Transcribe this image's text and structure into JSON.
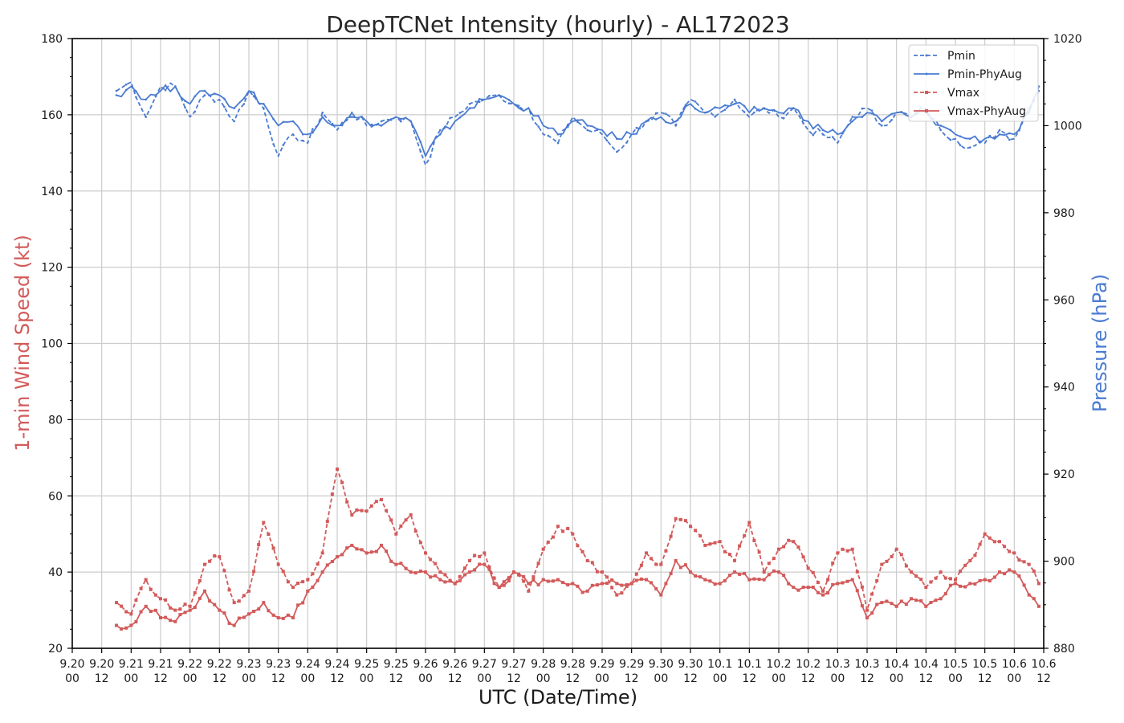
{
  "colors": {
    "pressure": "#4a7bd1",
    "wind": "#d35a5a",
    "grid": "#cccccc",
    "axis": "#000000"
  },
  "chart_data": {
    "type": "line",
    "title": "DeepTCNet Intensity (hourly) - AL172023",
    "xlabel": "UTC (Date/Time)",
    "ylabel_left": "1-min Wind Speed (kt)",
    "ylabel_right": "Pressure (hPa)",
    "x_unit": "hours since 9.20 00 UTC",
    "xlim": [
      0,
      396
    ],
    "ylim_left": [
      20,
      180
    ],
    "ylim_right": [
      880,
      1020
    ],
    "yticks_left": [
      "20",
      "40",
      "60",
      "80",
      "100",
      "120",
      "140",
      "160",
      "180"
    ],
    "yticks_right": [
      "880",
      "900",
      "920",
      "940",
      "960",
      "980",
      "1000",
      "1020"
    ],
    "xticks": [
      {
        "date": "9.20",
        "time": "00"
      },
      {
        "date": "9.20",
        "time": "12"
      },
      {
        "date": "9.21",
        "time": "00"
      },
      {
        "date": "9.21",
        "time": "12"
      },
      {
        "date": "9.22",
        "time": "00"
      },
      {
        "date": "9.22",
        "time": "12"
      },
      {
        "date": "9.23",
        "time": "00"
      },
      {
        "date": "9.23",
        "time": "12"
      },
      {
        "date": "9.24",
        "time": "00"
      },
      {
        "date": "9.24",
        "time": "12"
      },
      {
        "date": "9.25",
        "time": "00"
      },
      {
        "date": "9.25",
        "time": "12"
      },
      {
        "date": "9.26",
        "time": "00"
      },
      {
        "date": "9.26",
        "time": "12"
      },
      {
        "date": "9.27",
        "time": "00"
      },
      {
        "date": "9.27",
        "time": "12"
      },
      {
        "date": "9.28",
        "time": "00"
      },
      {
        "date": "9.28",
        "time": "12"
      },
      {
        "date": "9.29",
        "time": "00"
      },
      {
        "date": "9.29",
        "time": "12"
      },
      {
        "date": "9.30",
        "time": "00"
      },
      {
        "date": "9.30",
        "time": "12"
      },
      {
        "date": "10.1",
        "time": "00"
      },
      {
        "date": "10.1",
        "time": "12"
      },
      {
        "date": "10.2",
        "time": "00"
      },
      {
        "date": "10.2",
        "time": "12"
      },
      {
        "date": "10.3",
        "time": "00"
      },
      {
        "date": "10.3",
        "time": "12"
      },
      {
        "date": "10.4",
        "time": "00"
      },
      {
        "date": "10.4",
        "time": "12"
      },
      {
        "date": "10.5",
        "time": "00"
      },
      {
        "date": "10.5",
        "time": "12"
      },
      {
        "date": "10.6",
        "time": "00"
      },
      {
        "date": "10.6",
        "time": "12"
      }
    ],
    "grid": true,
    "legend_position": "top-right",
    "series": [
      {
        "name": "Pmin",
        "axis": "right",
        "style": "dashed",
        "color": "#4a7bd1",
        "x": [
          18,
          24,
          30,
          36,
          42,
          48,
          54,
          60,
          66,
          72,
          78,
          84,
          90,
          96,
          102,
          108,
          114,
          120,
          126,
          132,
          138,
          144,
          150,
          156,
          162,
          168,
          174,
          180,
          186,
          192,
          198,
          204,
          210,
          216,
          222,
          228,
          234,
          240,
          246,
          252,
          258,
          264,
          270,
          276,
          282,
          288,
          294,
          300,
          306,
          312,
          318,
          324,
          330,
          336,
          342,
          348,
          354,
          360,
          366,
          372,
          378,
          384,
          390,
          394
        ],
        "y": [
          1008,
          1010,
          1002,
          1009,
          1009,
          1002,
          1007,
          1006,
          1001,
          1008,
          1004,
          993,
          998,
          996,
          1003,
          999,
          1003,
          1000,
          1001,
          1002,
          1001,
          991,
          999,
          1002,
          1005,
          1006,
          1007,
          1005,
          1004,
          998,
          996,
          1002,
          999,
          998,
          994,
          998,
          1001,
          1003,
          1000,
          1006,
          1003,
          1003,
          1006,
          1002,
          1004,
          1002,
          1004,
          999,
          998,
          996,
          1002,
          1004,
          1000,
          1003,
          1002,
          1004,
          999,
          997,
          995,
          996,
          999,
          997,
          1004,
          1009
        ]
      },
      {
        "name": "Pmin-PhyAug",
        "axis": "right",
        "style": "solid",
        "color": "#4a7bd1",
        "x": [
          18,
          24,
          30,
          36,
          42,
          48,
          54,
          60,
          66,
          72,
          78,
          84,
          90,
          96,
          102,
          108,
          114,
          120,
          126,
          132,
          138,
          144,
          150,
          156,
          162,
          168,
          174,
          180,
          186,
          192,
          198,
          204,
          210,
          216,
          222,
          228,
          234,
          240,
          246,
          252,
          258,
          264,
          270,
          276,
          282,
          288,
          294,
          300,
          306,
          312,
          318,
          324,
          330,
          336,
          342,
          348,
          354,
          360,
          366,
          372,
          378,
          384,
          390,
          394
        ],
        "y": [
          1007,
          1009,
          1006,
          1008,
          1009,
          1005,
          1008,
          1007,
          1004,
          1008,
          1005,
          1000,
          1001,
          998,
          1002,
          1000,
          1002,
          1001,
          1000,
          1002,
          1001,
          993,
          998,
          1001,
          1004,
          1006,
          1007,
          1005,
          1004,
          1000,
          998,
          1001,
          1000,
          999,
          997,
          998,
          1001,
          1002,
          1001,
          1005,
          1003,
          1004,
          1005,
          1003,
          1004,
          1003,
          1004,
          1001,
          999,
          998,
          1001,
          1003,
          1001,
          1003,
          1002,
          1003,
          1000,
          998,
          997,
          997,
          998,
          998,
          1003,
          1008
        ]
      },
      {
        "name": "Vmax",
        "axis": "left",
        "style": "dashed-marker",
        "color": "#d35a5a",
        "x": [
          18,
          24,
          30,
          36,
          42,
          48,
          54,
          60,
          66,
          72,
          78,
          84,
          90,
          96,
          102,
          108,
          114,
          120,
          126,
          132,
          138,
          144,
          150,
          156,
          162,
          168,
          174,
          180,
          186,
          192,
          198,
          204,
          210,
          216,
          222,
          228,
          234,
          240,
          246,
          252,
          258,
          264,
          270,
          276,
          282,
          288,
          294,
          300,
          306,
          312,
          318,
          324,
          330,
          336,
          342,
          348,
          354,
          360,
          366,
          372,
          378,
          384,
          390,
          394
        ],
        "y": [
          32,
          29,
          38,
          33,
          30,
          31,
          42,
          44,
          32,
          35,
          53,
          42,
          36,
          38,
          45,
          67,
          55,
          56,
          59,
          50,
          55,
          45,
          40,
          37,
          43,
          45,
          36,
          40,
          35,
          46,
          52,
          50,
          43,
          40,
          34,
          37,
          45,
          42,
          54,
          52,
          47,
          48,
          43,
          53,
          40,
          46,
          48,
          41,
          35,
          45,
          46,
          30,
          42,
          46,
          40,
          36,
          40,
          38,
          43,
          50,
          48,
          45,
          42,
          37
        ]
      },
      {
        "name": "Vmax-PhyAug",
        "axis": "left",
        "style": "solid-marker",
        "color": "#d35a5a",
        "x": [
          18,
          24,
          30,
          36,
          42,
          48,
          54,
          60,
          66,
          72,
          78,
          84,
          90,
          96,
          102,
          108,
          114,
          120,
          126,
          132,
          138,
          144,
          150,
          156,
          162,
          168,
          174,
          180,
          186,
          192,
          198,
          204,
          210,
          216,
          222,
          228,
          234,
          240,
          246,
          252,
          258,
          264,
          270,
          276,
          282,
          288,
          294,
          300,
          306,
          312,
          318,
          324,
          330,
          336,
          342,
          348,
          354,
          360,
          366,
          372,
          378,
          384,
          390,
          394
        ],
        "y": [
          26,
          26,
          31,
          28,
          27,
          30,
          35,
          30,
          26,
          29,
          32,
          28,
          28,
          35,
          40,
          44,
          47,
          45,
          47,
          42,
          40,
          40,
          38,
          37,
          40,
          42,
          36,
          40,
          37,
          38,
          38,
          37,
          35,
          37,
          37,
          37,
          38,
          34,
          43,
          40,
          38,
          37,
          40,
          38,
          38,
          40,
          36,
          36,
          34,
          37,
          38,
          28,
          32,
          31,
          33,
          31,
          33,
          37,
          37,
          38,
          40,
          40,
          34,
          31
        ]
      }
    ]
  }
}
